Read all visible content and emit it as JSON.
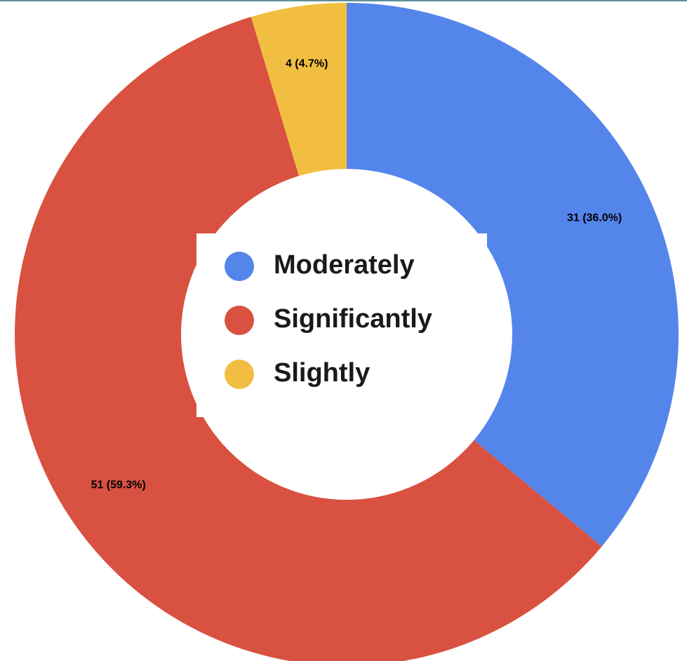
{
  "chart_data": {
    "type": "pie",
    "donut": true,
    "title": "",
    "categories": [
      "Moderately",
      "Significantly",
      "Slightly"
    ],
    "values": [
      31,
      51,
      4
    ],
    "percent_labels": [
      "36.0%",
      "59.3%",
      "4.7%"
    ],
    "data_labels": [
      "31 (36.0%)",
      "51 (59.3%)",
      "4 (4.7%)"
    ],
    "colors": [
      "#5485EB",
      "#D95140",
      "#F1BE42"
    ],
    "legend": {
      "placement": "center",
      "entries": [
        "Moderately",
        "Significantly",
        "Slightly"
      ]
    },
    "start_angle": "12 o'clock",
    "direction": "clockwise"
  }
}
